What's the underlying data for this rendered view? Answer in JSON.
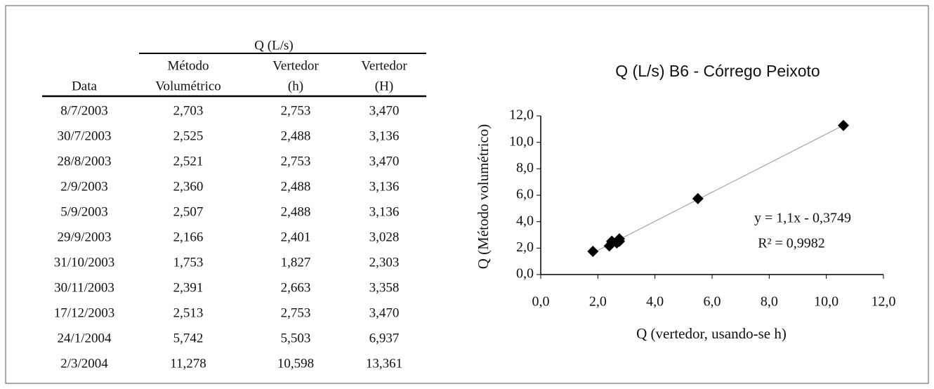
{
  "table": {
    "group_header": "Q (L/s)",
    "columns": [
      [
        "Data"
      ],
      [
        "Método",
        "Volumétrico"
      ],
      [
        "Vertedor",
        "(h)"
      ],
      [
        "Vertedor",
        "(H)"
      ]
    ],
    "rows": [
      [
        "8/7/2003",
        "2,703",
        "2,753",
        "3,470"
      ],
      [
        "30/7/2003",
        "2,525",
        "2,488",
        "3,136"
      ],
      [
        "28/8/2003",
        "2,521",
        "2,753",
        "3,470"
      ],
      [
        "2/9/2003",
        "2,360",
        "2,488",
        "3,136"
      ],
      [
        "5/9/2003",
        "2,507",
        "2,488",
        "3,136"
      ],
      [
        "29/9/2003",
        "2,166",
        "2,401",
        "3,028"
      ],
      [
        "31/10/2003",
        "1,753",
        "1,827",
        "2,303"
      ],
      [
        "30/11/2003",
        "2,391",
        "2,663",
        "3,358"
      ],
      [
        "17/12/2003",
        "2,513",
        "2,753",
        "3,470"
      ],
      [
        "24/1/2004",
        "5,742",
        "5,503",
        "6,937"
      ],
      [
        "2/3/2004",
        "11,278",
        "10,598",
        "13,361"
      ]
    ]
  },
  "chart_data": {
    "type": "scatter",
    "title": "Q (L/s)   B6 - Córrego Peixoto",
    "x_label": "Q (vertedor,  usando-se h)",
    "y_label": "Q (Método volumétrico)",
    "x": [
      2.753,
      2.488,
      2.753,
      2.488,
      2.488,
      2.401,
      1.827,
      2.663,
      2.753,
      5.503,
      10.598
    ],
    "values": [
      2.703,
      2.525,
      2.521,
      2.36,
      2.507,
      2.166,
      1.753,
      2.391,
      2.513,
      5.742,
      11.278
    ],
    "color": "#000000",
    "xlim": [
      0,
      12
    ],
    "ylim": [
      0,
      12
    ],
    "xticks": [
      {
        "value": 0,
        "label": "0,0"
      },
      {
        "value": 2,
        "label": "2,0"
      },
      {
        "value": 4,
        "label": "4,0"
      },
      {
        "value": 6,
        "label": "6,0"
      },
      {
        "value": 8,
        "label": "8,0"
      },
      {
        "value": 10,
        "label": "10,0"
      },
      {
        "value": 12,
        "label": "12,0"
      }
    ],
    "yticks": [
      {
        "value": 0,
        "label": "0,0"
      },
      {
        "value": 2,
        "label": "2,0"
      },
      {
        "value": 4,
        "label": "4,0"
      },
      {
        "value": 6,
        "label": "6,0"
      },
      {
        "value": 8,
        "label": "8,0"
      },
      {
        "value": 10,
        "label": "10,0"
      },
      {
        "value": 12,
        "label": "12,0"
      }
    ],
    "trendline": {
      "label": "y = 1,1x - 0,3749",
      "r2_label": "R² = 0,9982",
      "slope": 1.1,
      "intercept": -0.3749,
      "color": "#a6a6a6"
    }
  }
}
